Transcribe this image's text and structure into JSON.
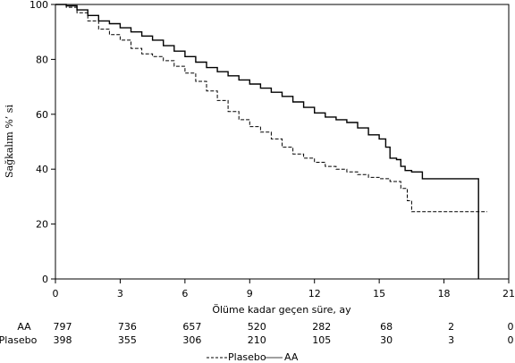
{
  "chart_data": {
    "type": "line",
    "title": "",
    "xlabel": "Ölüme kadar geçen süre, ay",
    "ylabel": "Sağkalım %’ si",
    "xlim": [
      0,
      21
    ],
    "ylim": [
      0,
      100
    ],
    "xticks": [
      "0",
      "3",
      "6",
      "9",
      "12",
      "15",
      "18",
      "21"
    ],
    "yticks": [
      "0",
      "20",
      "40",
      "60",
      "80",
      "100"
    ],
    "grid": false,
    "legend_position": "bottom",
    "series": [
      {
        "name": "AA",
        "style": "solid",
        "color": "#000000",
        "x": [
          0,
          0.5,
          1,
          1.5,
          2,
          2.5,
          3,
          3.5,
          4,
          4.5,
          5,
          5.5,
          6,
          6.5,
          7,
          7.5,
          8,
          8.5,
          9,
          9.5,
          10,
          10.5,
          11,
          11.5,
          12,
          12.5,
          13,
          13.5,
          14,
          14.5,
          15,
          15.3,
          15.5,
          15.8,
          16,
          16.2,
          16.5,
          16.8,
          17,
          17.5,
          18,
          19,
          19.6,
          19.6
        ],
        "y": [
          100,
          99.5,
          98,
          96,
          94,
          93,
          91.5,
          90,
          88.5,
          87,
          85,
          83,
          81,
          79,
          77,
          75.5,
          74,
          72.5,
          71,
          69.5,
          68,
          66.5,
          64.5,
          62.5,
          60.5,
          59,
          58,
          57,
          55,
          52.5,
          51,
          48,
          44,
          43.5,
          41,
          39.5,
          39,
          39,
          36.5,
          36.5,
          36.5,
          36.5,
          36.5,
          0
        ]
      },
      {
        "name": "Plasebo",
        "style": "dashed",
        "color": "#000000",
        "x": [
          0,
          0.5,
          1,
          1.5,
          2,
          2.5,
          3,
          3.5,
          4,
          4.5,
          5,
          5.5,
          6,
          6.5,
          7,
          7.5,
          8,
          8.5,
          9,
          9.5,
          10,
          10.5,
          11,
          11.5,
          12,
          12.5,
          13,
          13.5,
          14,
          14.5,
          15,
          15.5,
          16,
          16.3,
          16.5,
          16.8,
          17,
          17.5,
          18,
          19,
          20
        ],
        "y": [
          100,
          99,
          97,
          94,
          91,
          89,
          87,
          84,
          82,
          81,
          79.5,
          77.5,
          75,
          72,
          68.5,
          65,
          61,
          58,
          55.5,
          53.5,
          51,
          48,
          45.5,
          44,
          42.5,
          41,
          40,
          39,
          38,
          37,
          36.5,
          35.5,
          33,
          28.5,
          24.5,
          24.5,
          24.5,
          24.5,
          24.5,
          24.5,
          24.5
        ]
      }
    ],
    "risk_table": {
      "rows": [
        {
          "label": "AA",
          "values": [
            "797",
            "736",
            "657",
            "520",
            "282",
            "68",
            "2",
            "0"
          ]
        },
        {
          "label": "Plasebo",
          "values": [
            "398",
            "355",
            "306",
            "210",
            "105",
            "30",
            "3",
            "0"
          ]
        }
      ]
    },
    "legend": {
      "items": [
        {
          "label": "Plasebo",
          "style": "dashed"
        },
        {
          "label": "AA",
          "style": "solid"
        }
      ]
    }
  }
}
